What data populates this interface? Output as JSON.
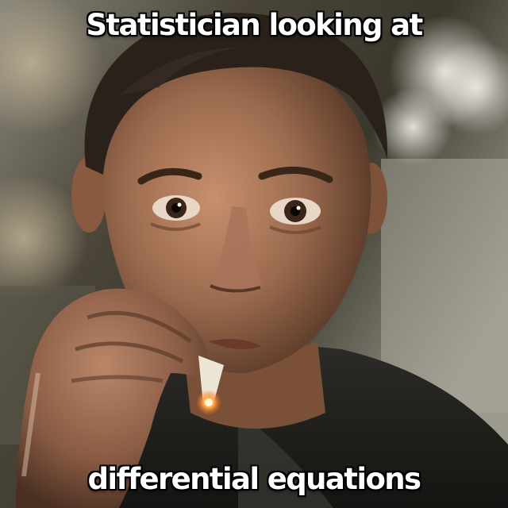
{
  "meme": {
    "top_text": "Statistician looking at",
    "bottom_text": "differential equations"
  },
  "photo": {
    "description_icon": "man-smoking-cigarette-photo",
    "colors": {
      "background_dark": "#1d1a16",
      "background_light": "#b8b5a8",
      "skin": "#a9745a",
      "hair": "#2a211b",
      "jacket": "#22221f",
      "ember": "#ff8a2a"
    }
  }
}
